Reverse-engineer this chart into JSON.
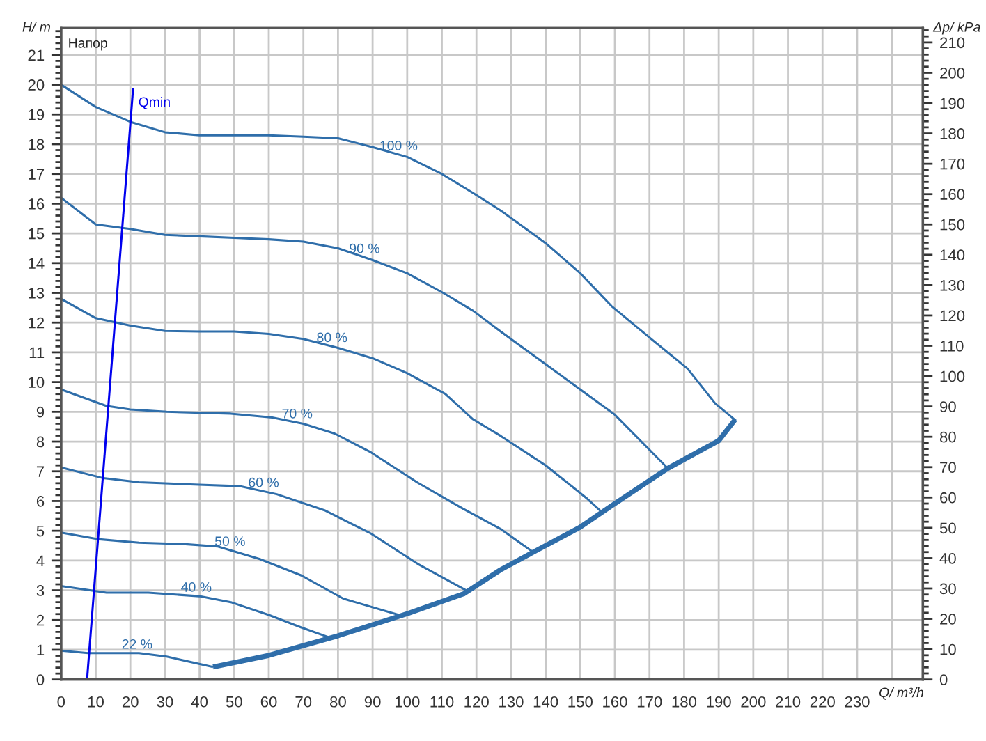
{
  "chart_data": {
    "type": "line",
    "xlabel": "Q/ m³/h",
    "ylabel": "H/ m",
    "y2label": "Δp/ kPa",
    "annotations": [
      "Напор"
    ],
    "xlim": [
      0,
      249
    ],
    "xticks": [
      0,
      10,
      20,
      30,
      40,
      50,
      60,
      70,
      80,
      90,
      100,
      110,
      120,
      130,
      140,
      150,
      160,
      170,
      180,
      190,
      200,
      210,
      220,
      230,
      {
        "value": 240,
        "label": null
      }
    ],
    "ylim": [
      0,
      21.9
    ],
    "yticks": [
      0,
      1,
      2,
      3,
      4,
      5,
      6,
      7,
      8,
      9,
      10,
      11,
      12,
      13,
      14,
      15,
      16,
      17,
      18,
      19,
      20,
      21
    ],
    "y2lim": [
      0,
      214.7
    ],
    "y2ticks": [
      0,
      10,
      20,
      30,
      40,
      50,
      60,
      70,
      80,
      90,
      100,
      110,
      120,
      130,
      140,
      150,
      160,
      170,
      180,
      190,
      200,
      210
    ],
    "grid": true,
    "legend": false,
    "marker": "none",
    "line_style": "solid",
    "series": [
      {
        "name": "100 %",
        "color": "#2f6eaa",
        "x": [
          0,
          10,
          20,
          30,
          40,
          60,
          70,
          80,
          90,
          100,
          110,
          119,
          127,
          140,
          150,
          159,
          170,
          181,
          189,
          195
        ],
        "values": [
          20,
          19.25,
          18.75,
          18.4,
          18.3,
          18.3,
          18.25,
          18.2,
          17.9,
          17.57,
          17.0,
          16.36,
          15.77,
          14.67,
          13.66,
          12.56,
          11.5,
          10.45,
          9.28,
          8.7
        ]
      },
      {
        "name": "90 %",
        "color": "#2f6eaa",
        "x": [
          0,
          10,
          20,
          30,
          40,
          50,
          60,
          70,
          80,
          90,
          100,
          111,
          119,
          127,
          140,
          150,
          160,
          175.3
        ],
        "values": [
          16.2,
          15.3,
          15.15,
          14.95,
          14.9,
          14.85,
          14.8,
          14.72,
          14.5,
          14.1,
          13.66,
          12.96,
          12.4,
          11.7,
          10.6,
          9.75,
          8.9,
          7.1
        ]
      },
      {
        "name": "80 %",
        "color": "#2f6eaa",
        "x": [
          0,
          10,
          20,
          30,
          40,
          50,
          60,
          70,
          80,
          90,
          100,
          111,
          119,
          127,
          140,
          152,
          156.5
        ],
        "values": [
          12.8,
          12.15,
          11.9,
          11.72,
          11.7,
          11.7,
          11.62,
          11.45,
          11.15,
          10.8,
          10.3,
          9.6,
          8.75,
          8.19,
          7.2,
          6.08,
          5.6
        ]
      },
      {
        "name": "70 %",
        "color": "#2f6eaa",
        "x": [
          0,
          13,
          20,
          30.5,
          49,
          61,
          70,
          79,
          89.5,
          103,
          116,
          127,
          136.4
        ],
        "values": [
          9.75,
          9.2,
          9.08,
          9.0,
          8.94,
          8.81,
          8.6,
          8.27,
          7.64,
          6.62,
          5.75,
          5.06,
          4.28
        ]
      },
      {
        "name": "60 %",
        "color": "#2f6eaa",
        "x": [
          0,
          11.8,
          22.5,
          39.9,
          51.6,
          62.3,
          76.1,
          89.5,
          103,
          117
        ],
        "values": [
          7.13,
          6.78,
          6.63,
          6.55,
          6.5,
          6.23,
          5.69,
          4.91,
          3.89,
          3.0
        ]
      },
      {
        "name": "50 %",
        "color": "#2f6eaa",
        "x": [
          0,
          10.5,
          22.5,
          35.9,
          45.3,
          57.4,
          69.4,
          81.5,
          97.6
        ],
        "values": [
          4.94,
          4.72,
          4.6,
          4.55,
          4.47,
          4.05,
          3.5,
          2.72,
          2.17
        ]
      },
      {
        "name": "40 %",
        "color": "#2f6eaa",
        "x": [
          0,
          13.1,
          25.2,
          39.9,
          49.3,
          60,
          69.4,
          78.1
        ],
        "values": [
          3.14,
          2.92,
          2.92,
          2.8,
          2.59,
          2.17,
          1.75,
          1.39
        ]
      },
      {
        "name": "22 %",
        "color": "#2f6eaa",
        "x": [
          0,
          7.8,
          22.5,
          30.5,
          43.9
        ],
        "values": [
          0.97,
          0.89,
          0.89,
          0.77,
          0.42
        ]
      },
      {
        "color": "#2f6eaa",
        "x": [
          43.9,
          60,
          80,
          100.2,
          116.3,
          127,
          136.4,
          149.8,
          159.2,
          175.3,
          190,
          194.7
        ],
        "values": [
          0.42,
          0.81,
          1.47,
          2.22,
          2.88,
          3.69,
          4.28,
          5.11,
          5.85,
          7.1,
          8.03,
          8.73
        ]
      },
      {
        "name": "Qmin",
        "color": "#0000ee",
        "x": [
          7.5,
          20.8
        ],
        "values": [
          0,
          19.88
        ]
      }
    ]
  }
}
